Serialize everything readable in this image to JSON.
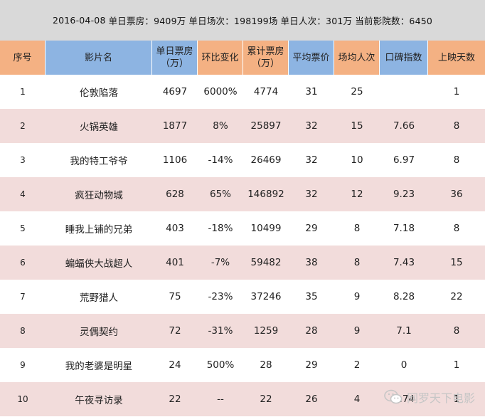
{
  "summary": {
    "date": "2016-04-08",
    "daily_box": "单日票房：9409万",
    "daily_shows": "单日场次：198199场",
    "daily_viewers": "单日人次：301万",
    "cinemas": "当前影院数：6450"
  },
  "headers": [
    "序号",
    "影片名",
    "单日票房\n（万）",
    "环比变化",
    "累计票房\n（万）",
    "平均票价",
    "场均人次",
    "口碑指数",
    "上映天数"
  ],
  "rows": [
    [
      "1",
      "伦敦陷落",
      "4697",
      "6000%",
      "4774",
      "31",
      "25",
      "",
      "1"
    ],
    [
      "2",
      "火锅英雄",
      "1877",
      "8%",
      "25897",
      "32",
      "15",
      "7.66",
      "8"
    ],
    [
      "3",
      "我的特工爷爷",
      "1106",
      "-14%",
      "26469",
      "32",
      "10",
      "6.97",
      "8"
    ],
    [
      "4",
      "疯狂动物城",
      "628",
      "65%",
      "146892",
      "32",
      "12",
      "9.23",
      "36"
    ],
    [
      "5",
      "睡我上铺的兄弟",
      "403",
      "-18%",
      "10499",
      "29",
      "8",
      "7.18",
      "8"
    ],
    [
      "6",
      "蝙蝠侠大战超人",
      "401",
      "-7%",
      "59482",
      "38",
      "8",
      "7.43",
      "15"
    ],
    [
      "7",
      "荒野猎人",
      "75",
      "-23%",
      "37246",
      "35",
      "9",
      "8.28",
      "22"
    ],
    [
      "8",
      "灵偶契约",
      "72",
      "-31%",
      "1259",
      "28",
      "9",
      "7.1",
      "8"
    ],
    [
      "9",
      "我的老婆是明星",
      "24",
      "500%",
      "28",
      "29",
      "2",
      "0",
      "1"
    ],
    [
      "10",
      "午夜寻访录",
      "22",
      "--",
      "22",
      "26",
      "4",
      "6.74",
      "1"
    ]
  ],
  "watermark": "网罗天下电影",
  "colors": {
    "header_orange": "#f4b183",
    "header_blue": "#8db4e2",
    "row_alt": "#f2dcdb",
    "summary_bg": "#d9d9d9"
  }
}
